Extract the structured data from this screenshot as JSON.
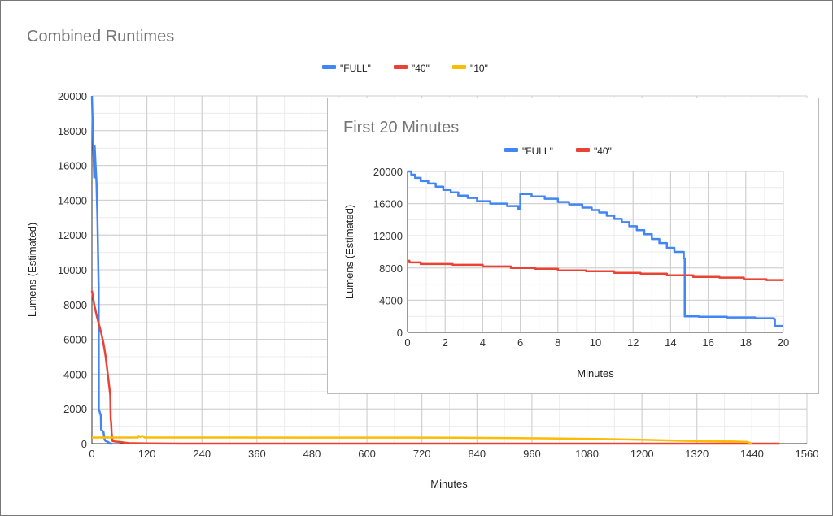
{
  "chart_data": [
    {
      "type": "line",
      "title": "Combined Runtimes",
      "xlabel": "Minutes",
      "ylabel": "Lumens (Estimated)",
      "xlim": [
        0,
        1560
      ],
      "ylim": [
        0,
        20000
      ],
      "xticks": [
        0,
        120,
        240,
        360,
        480,
        600,
        720,
        840,
        960,
        1080,
        1200,
        1320,
        1440,
        1560
      ],
      "yticks": [
        0,
        2000,
        4000,
        6000,
        8000,
        10000,
        12000,
        14000,
        16000,
        18000,
        20000
      ],
      "grid": true,
      "legend": "top-center",
      "series": [
        {
          "name": "\"FULL\"",
          "color": "#4285f4",
          "x": [
            0,
            1,
            3,
            5,
            6,
            8,
            10,
            12,
            14.7,
            15,
            19.5,
            20,
            22,
            25,
            28,
            30,
            35,
            40,
            45
          ],
          "y": [
            20000,
            19000,
            17100,
            15300,
            17100,
            16000,
            15000,
            13000,
            9000,
            2000,
            1600,
            800,
            750,
            700,
            200,
            150,
            100,
            0,
            0
          ]
        },
        {
          "name": "\"40\"",
          "color": "#ea4335",
          "x": [
            0,
            5,
            10,
            20,
            25,
            30,
            40,
            41,
            42,
            43,
            45,
            50,
            60,
            80,
            120,
            200,
            1500
          ],
          "y": [
            8800,
            8000,
            7400,
            6400,
            5800,
            5000,
            2800,
            1400,
            1200,
            600,
            150,
            120,
            100,
            30,
            10,
            0,
            0
          ]
        },
        {
          "name": "\"10\"",
          "color": "#fbbc04",
          "x": [
            0,
            100,
            102,
            105,
            110,
            115,
            300,
            600,
            800,
            1000,
            1100,
            1200,
            1300,
            1400,
            1430,
            1440
          ],
          "y": [
            350,
            350,
            450,
            380,
            450,
            350,
            350,
            345,
            340,
            300,
            270,
            220,
            160,
            120,
            100,
            0
          ]
        }
      ]
    },
    {
      "type": "line",
      "title": "First 20 Minutes",
      "xlabel": "Minutes",
      "ylabel": "Lumens (Estimated)",
      "xlim": [
        0,
        20
      ],
      "ylim": [
        0,
        20000
      ],
      "xticks": [
        0,
        2,
        4,
        6,
        8,
        10,
        12,
        14,
        16,
        18,
        20
      ],
      "yticks": [
        0,
        4000,
        8000,
        12000,
        16000,
        20000
      ],
      "grid": true,
      "legend": "top-center",
      "series": [
        {
          "name": "\"FULL\"",
          "color": "#4285f4",
          "x": [
            0,
            0.2,
            0.4,
            0.7,
            1.1,
            1.5,
            1.9,
            2.3,
            2.7,
            3.2,
            3.7,
            4.4,
            5.3,
            5.9,
            6.0,
            6.6,
            7.3,
            8.0,
            8.6,
            9.3,
            9.8,
            10.2,
            10.6,
            11.0,
            11.4,
            11.8,
            12.2,
            12.6,
            13.0,
            13.4,
            13.8,
            14.2,
            14.7,
            14.75,
            15.5,
            17,
            18.5,
            19.5,
            19.55,
            20
          ],
          "y": [
            20000,
            19600,
            19200,
            18800,
            18500,
            18100,
            17700,
            17400,
            17000,
            16700,
            16300,
            16000,
            15700,
            15300,
            17200,
            16900,
            16600,
            16200,
            15900,
            15500,
            15200,
            14900,
            14500,
            14100,
            13700,
            13200,
            12700,
            12200,
            11600,
            11100,
            10500,
            10000,
            9200,
            2000,
            1950,
            1850,
            1750,
            1650,
            800,
            800
          ]
        },
        {
          "name": "\"40\"",
          "color": "#ea4335",
          "x": [
            0,
            0.1,
            0.7,
            2.4,
            4.0,
            5.5,
            6.8,
            8.0,
            9.5,
            11.0,
            12.4,
            13.8,
            15.2,
            16.6,
            17.9,
            19.1,
            20
          ],
          "y": [
            8900,
            8700,
            8500,
            8400,
            8200,
            8000,
            7900,
            7700,
            7600,
            7400,
            7300,
            7100,
            6900,
            6800,
            6600,
            6500,
            6450
          ]
        }
      ]
    }
  ]
}
